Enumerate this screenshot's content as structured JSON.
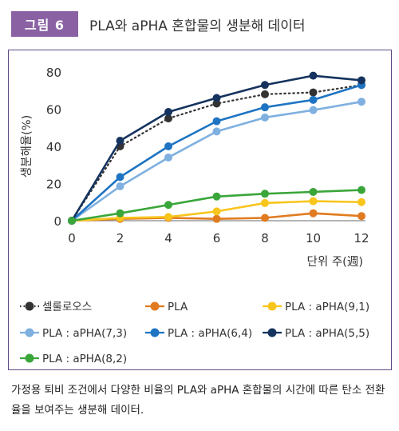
{
  "figure": {
    "badge": "그림 6",
    "title": "PLA와 aPHA 혼합물의 생분해 데이터",
    "caption": "가정용 퇴비 조건에서 다양한 비율의 PLA와 aPHA 혼합물의 시간에 따른 탄소 전환율을 보여주는 생분해 데이터."
  },
  "chart_data": {
    "type": "line",
    "title": "",
    "xlabel": "단위 주(週)",
    "ylabel": "생분해율(%)",
    "x": [
      0,
      2,
      4,
      6,
      8,
      10,
      12
    ],
    "xlim": [
      0,
      12
    ],
    "ylim": [
      0,
      80
    ],
    "xticks": [
      "0",
      "2",
      "4",
      "6",
      "8",
      "10",
      "12"
    ],
    "yticks": [
      "0",
      "20",
      "40",
      "60",
      "80"
    ],
    "grid": false,
    "legend_position": "bottom",
    "series": [
      {
        "name": "셀룰로오스",
        "color": "#333333",
        "dotted": true,
        "values": [
          0,
          40,
          55,
          63,
          68,
          69,
          73
        ]
      },
      {
        "name": "PLA",
        "color": "#e07b20",
        "dotted": false,
        "values": [
          0,
          1,
          1.5,
          1,
          1.5,
          4,
          2.5
        ]
      },
      {
        "name": "PLA : aPHA(9,1)",
        "color": "#f8c51c",
        "dotted": false,
        "values": [
          0,
          1.5,
          2,
          5,
          9.5,
          10.5,
          10
        ]
      },
      {
        "name": "PLA : aPHA(7,3)",
        "color": "#7fb0e0",
        "dotted": false,
        "values": [
          0,
          18.5,
          34,
          48,
          55.5,
          59.5,
          64
        ]
      },
      {
        "name": "PLA : aPHA(6,4)",
        "color": "#1e74c2",
        "dotted": false,
        "values": [
          0,
          23.5,
          40,
          53.5,
          61,
          65,
          73
        ]
      },
      {
        "name": "PLA : aPHA(5,5)",
        "color": "#15335e",
        "dotted": false,
        "values": [
          0,
          43,
          58.5,
          66,
          73,
          78,
          75.5
        ]
      },
      {
        "name": "PLA : aPHA(8,2)",
        "color": "#3aa63a",
        "dotted": false,
        "values": [
          0,
          4,
          8.5,
          13,
          14.5,
          15.5,
          16.5
        ]
      }
    ]
  }
}
